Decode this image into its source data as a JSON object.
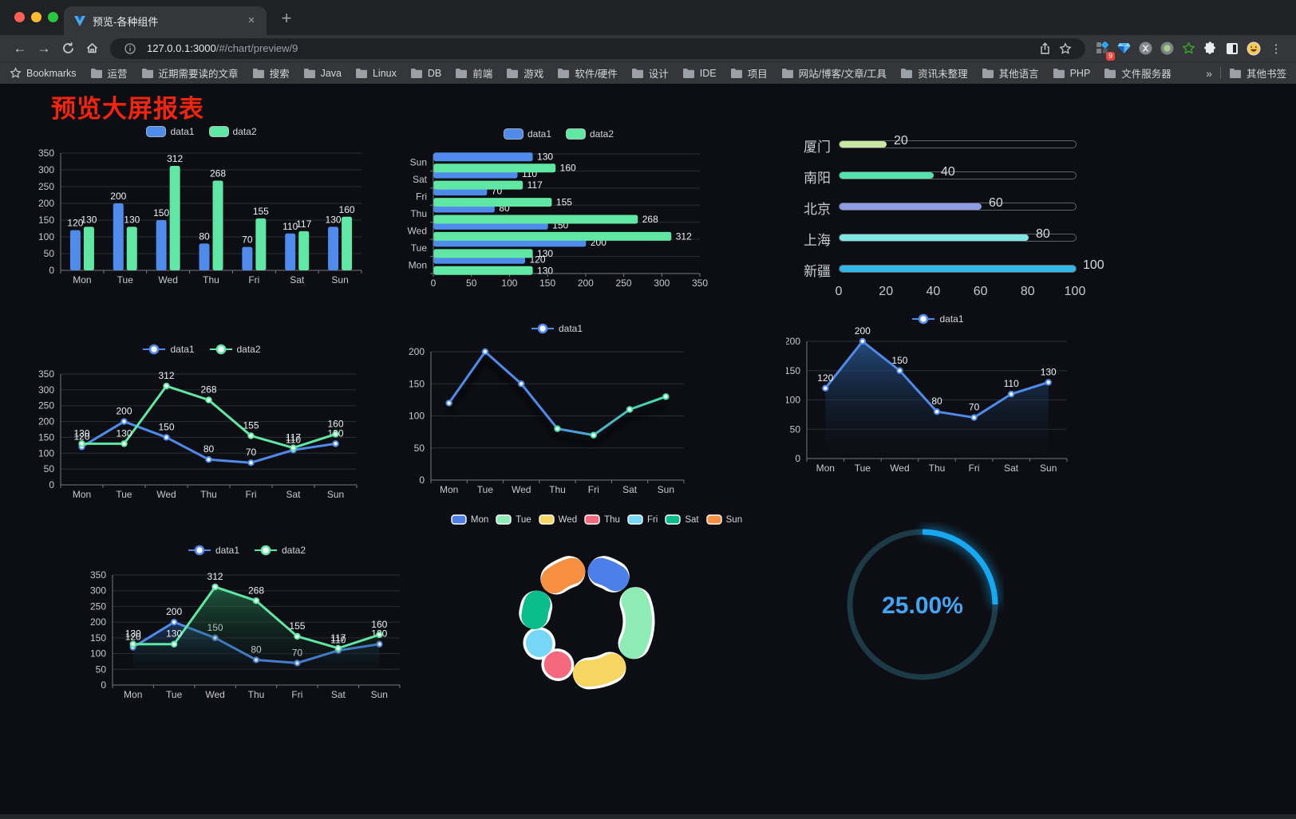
{
  "browser": {
    "tab_title": "预览-各种组件",
    "url_host": "127.0.0.1:3000",
    "url_path": "/#/chart/preview/9",
    "extension_badge": "9",
    "bookmarks_label": "Bookmarks",
    "bookmarks": [
      "运营",
      "近期需要读的文章",
      "搜索",
      "Java",
      "Linux",
      "DB",
      "前端",
      "游戏",
      "软件/硬件",
      "设计",
      "IDE",
      "项目",
      "网站/博客/文章/工具",
      "资讯未整理",
      "其他语言",
      "PHP",
      "文件服务器"
    ],
    "bookmarks_overflow": "»",
    "other_bookmarks": "其他书签"
  },
  "page": {
    "title": "预览大屏报表",
    "title_color": "#F3250C",
    "background": "#0d0e13"
  },
  "chart_data": [
    {
      "id": "bar-grouped",
      "type": "bar",
      "categories": [
        "Mon",
        "Tue",
        "Wed",
        "Thu",
        "Fri",
        "Sat",
        "Sun"
      ],
      "series": [
        {
          "name": "data1",
          "color": "#4E8BEA",
          "values": [
            120,
            200,
            150,
            80,
            70,
            110,
            130
          ]
        },
        {
          "name": "data2",
          "color": "#5FE7A3",
          "values": [
            130,
            130,
            312,
            268,
            155,
            117,
            160
          ]
        }
      ],
      "ylim": [
        0,
        350
      ],
      "ytick": 50,
      "legend": "top",
      "value_labels": true,
      "grid": true
    },
    {
      "id": "bar-horizontal",
      "type": "bar-horizontal",
      "categories": [
        "Mon",
        "Tue",
        "Wed",
        "Thu",
        "Fri",
        "Sat",
        "Sun"
      ],
      "series": [
        {
          "name": "data1",
          "color": "#4E8BEA",
          "values": [
            120,
            200,
            150,
            80,
            70,
            110,
            130
          ]
        },
        {
          "name": "data2",
          "color": "#5FE7A3",
          "values": [
            130,
            130,
            312,
            268,
            155,
            117,
            160
          ]
        }
      ],
      "xlim": [
        0,
        350
      ],
      "xtick": 50,
      "legend": "top",
      "value_labels": true,
      "grid": true
    },
    {
      "id": "progress-bars",
      "type": "progress",
      "max": 100,
      "axis_ticks": [
        0,
        20,
        40,
        60,
        80,
        100
      ],
      "items": [
        {
          "label": "厦门",
          "value": 20,
          "color": "#C9E8A2"
        },
        {
          "label": "南阳",
          "value": 40,
          "color": "#55E2AE"
        },
        {
          "label": "北京",
          "value": 60,
          "color": "#8F9BE5"
        },
        {
          "label": "上海",
          "value": 80,
          "color": "#7FE6E1"
        },
        {
          "label": "新疆",
          "value": 100,
          "color": "#33B6E8"
        }
      ]
    },
    {
      "id": "line-basic",
      "type": "line",
      "categories": [
        "Mon",
        "Tue",
        "Wed",
        "Thu",
        "Fri",
        "Sat",
        "Sun"
      ],
      "series": [
        {
          "name": "data1",
          "color": "#4E8BEA",
          "values": [
            120,
            200,
            150,
            80,
            70,
            110,
            130
          ]
        },
        {
          "name": "data2",
          "color": "#5FE7A3",
          "values": [
            130,
            130,
            312,
            268,
            155,
            117,
            160
          ]
        }
      ],
      "ylim": [
        0,
        350
      ],
      "ytick": 50,
      "legend": "top",
      "value_labels": true,
      "grid": true
    },
    {
      "id": "line-gradient",
      "type": "line",
      "categories": [
        "Mon",
        "Tue",
        "Wed",
        "Thu",
        "Fri",
        "Sat",
        "Sun"
      ],
      "series": [
        {
          "name": "data1",
          "color": "#4E8BEA",
          "gradient": [
            "#4E8BEA",
            "#45E0A2"
          ],
          "values": [
            120,
            200,
            150,
            80,
            70,
            110,
            130
          ],
          "shadow": true
        }
      ],
      "ylim": [
        0,
        200
      ],
      "ytick": 50,
      "legend": "top",
      "value_labels": false,
      "grid": true
    },
    {
      "id": "area-single",
      "type": "area",
      "categories": [
        "Mon",
        "Tue",
        "Wed",
        "Thu",
        "Fri",
        "Sat",
        "Sun"
      ],
      "series": [
        {
          "name": "data1",
          "color": "#4E8BEA",
          "area": [
            "rgba(40,86,145,0.85)",
            "rgba(13,20,34,0.02)"
          ],
          "values": [
            120,
            200,
            150,
            80,
            70,
            110,
            130
          ]
        }
      ],
      "ylim": [
        0,
        200
      ],
      "ytick": 50,
      "legend": "top",
      "value_labels": true,
      "grid": true
    },
    {
      "id": "area-double",
      "type": "area",
      "categories": [
        "Mon",
        "Tue",
        "Wed",
        "Thu",
        "Fri",
        "Sat",
        "Sun"
      ],
      "series": [
        {
          "name": "data1",
          "color": "#4E8BEA",
          "area": [
            "rgba(43,92,160,0.50)",
            "rgba(0,0,0,0)"
          ],
          "values": [
            120,
            200,
            150,
            80,
            70,
            110,
            130
          ]
        },
        {
          "name": "data2",
          "color": "#5FE7A3",
          "area": [
            "rgba(47,150,100,0.55)",
            "rgba(0,0,0,0.02)"
          ],
          "values": [
            130,
            130,
            312,
            268,
            155,
            117,
            160
          ]
        }
      ],
      "ylim": [
        0,
        350
      ],
      "ytick": 50,
      "legend": "top",
      "value_labels": true,
      "grid": true
    },
    {
      "id": "donut",
      "type": "pie",
      "legend": "top",
      "items": [
        {
          "label": "Mon",
          "value": 120,
          "color": "#4C7FE8"
        },
        {
          "label": "Tue",
          "value": 200,
          "color": "#8CECB4"
        },
        {
          "label": "Wed",
          "value": 150,
          "color": "#F6D561"
        },
        {
          "label": "Thu",
          "value": 80,
          "color": "#F5687E"
        },
        {
          "label": "Fri",
          "value": 70,
          "color": "#76D6F6"
        },
        {
          "label": "Sat",
          "value": 110,
          "color": "#09BE8B"
        },
        {
          "label": "Sun",
          "value": 130,
          "color": "#F68F40"
        }
      ]
    },
    {
      "id": "gauge",
      "type": "gauge",
      "value": 25,
      "label": "25.00%",
      "color": "#17A8F2",
      "track_color": "#1C3B47",
      "text_color": "#42A6F3"
    }
  ]
}
